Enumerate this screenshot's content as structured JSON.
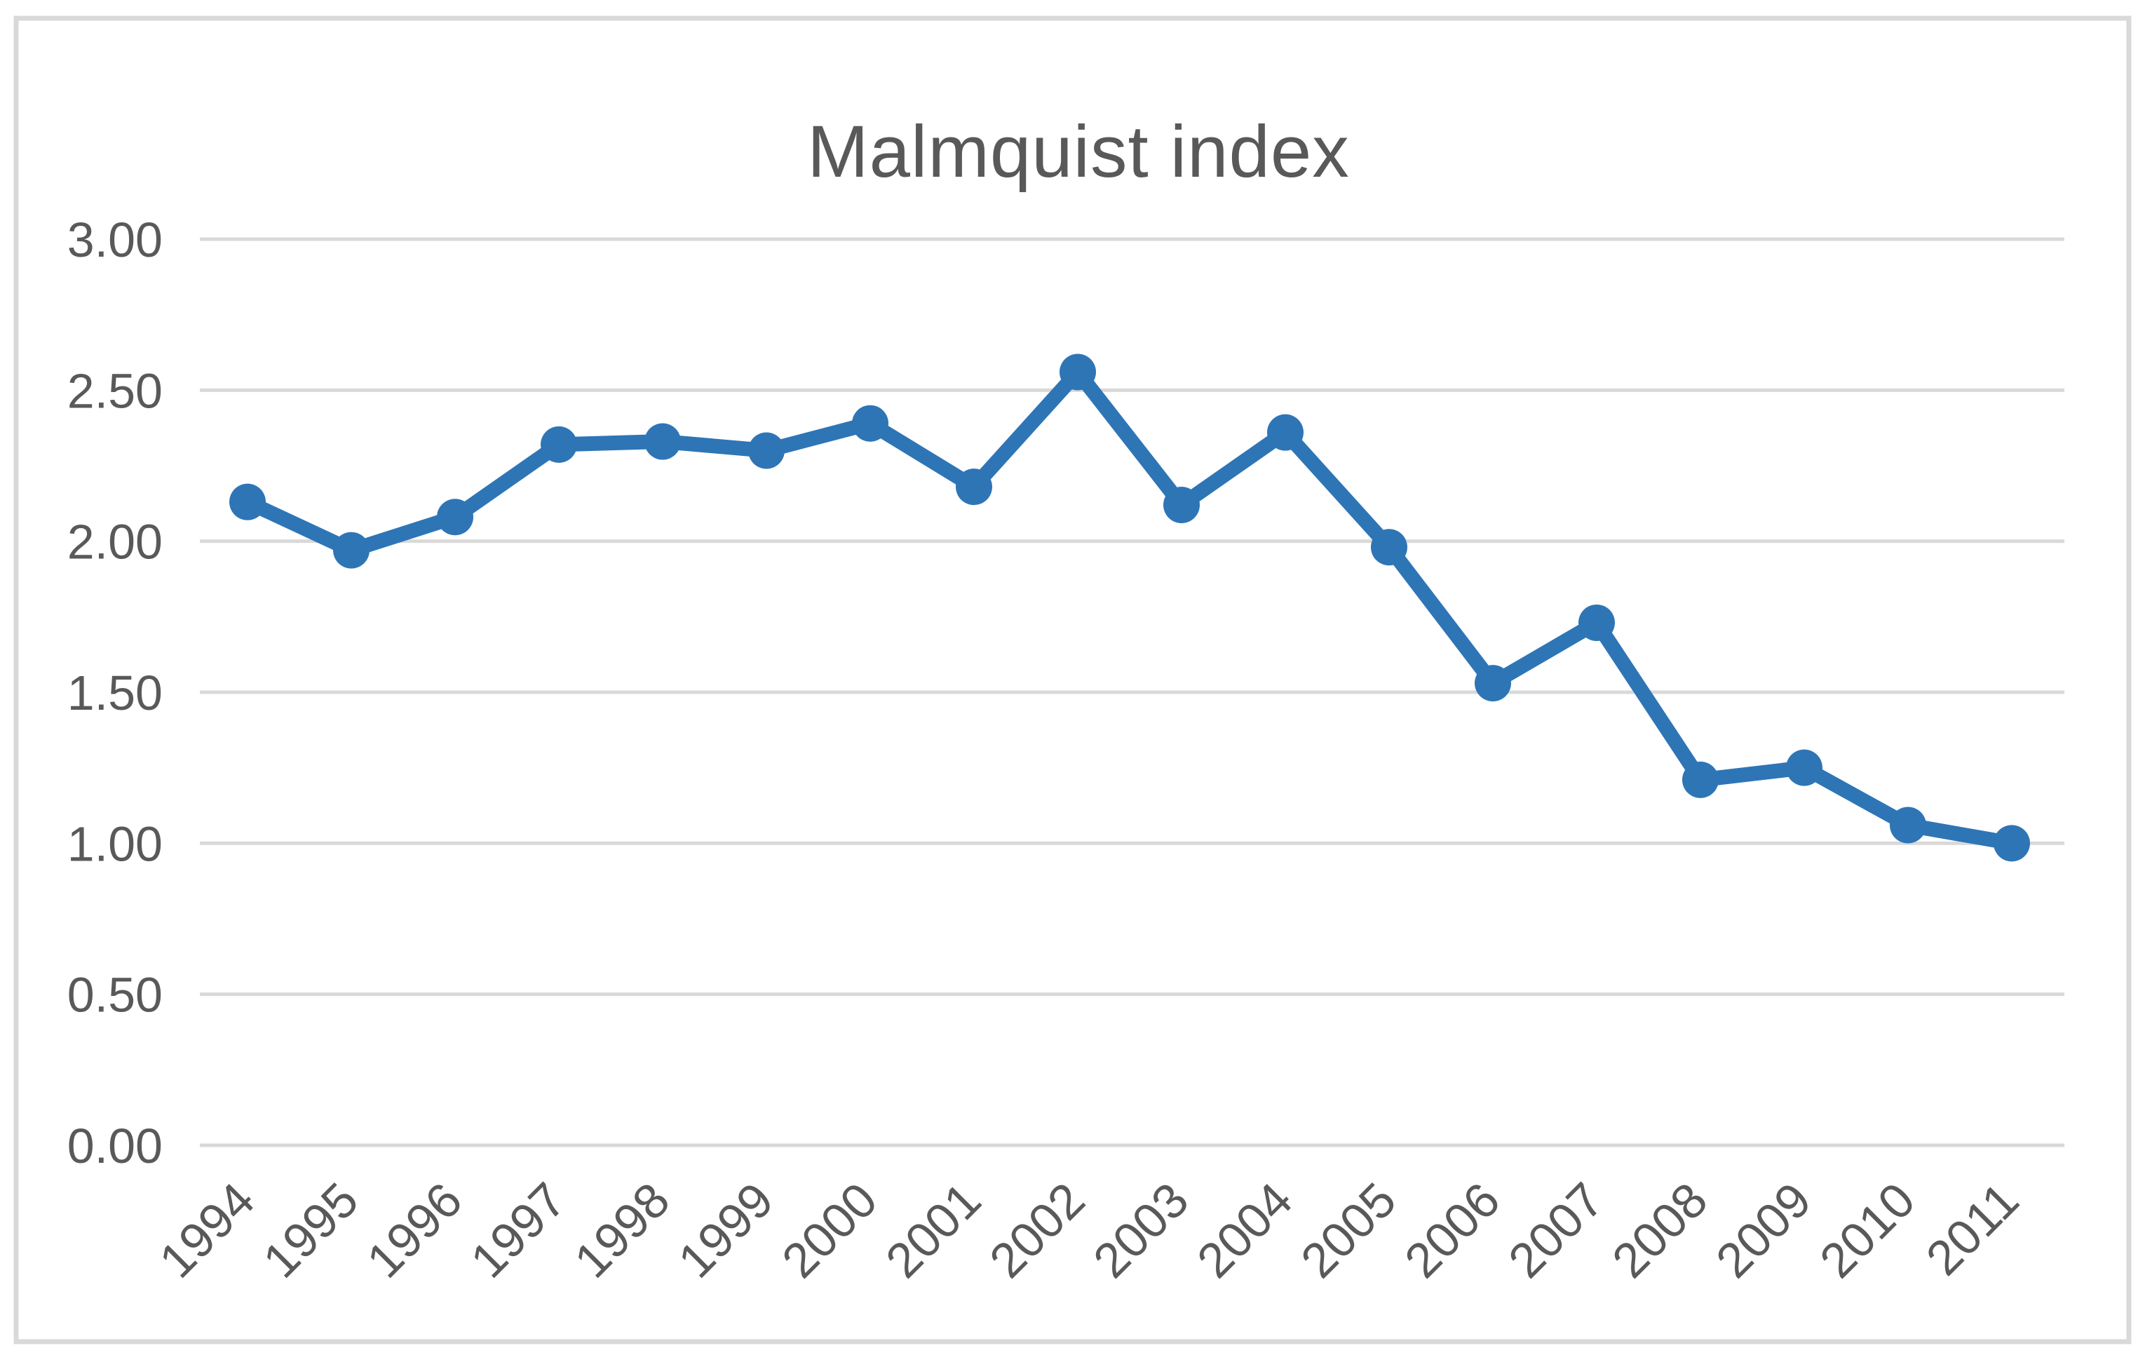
{
  "chart_data": {
    "type": "line",
    "title": "Malmquist index",
    "categories": [
      "1994",
      "1995",
      "1996",
      "1997",
      "1998",
      "1999",
      "2000",
      "2001",
      "2002",
      "2003",
      "2004",
      "2005",
      "2006",
      "2007",
      "2008",
      "2009",
      "2010",
      "2011"
    ],
    "series": [
      {
        "name": "Malmquist index",
        "values": [
          2.13,
          1.97,
          2.08,
          2.32,
          2.33,
          2.3,
          2.39,
          2.18,
          2.56,
          2.12,
          2.36,
          1.98,
          1.53,
          1.73,
          1.21,
          1.25,
          1.06,
          1.0
        ]
      }
    ],
    "xlabel": "",
    "ylabel": "",
    "ylim": [
      0.0,
      3.0
    ],
    "ytick_step": 0.5,
    "ytick_labels": [
      "0.00",
      "0.50",
      "1.00",
      "1.50",
      "2.00",
      "2.50",
      "3.00"
    ],
    "x_tick_rotation_deg": 45,
    "grid": "horizontal-only",
    "legend_position": "none",
    "marker_style": "circle",
    "colors": {
      "line": "#2E75B6",
      "marker": "#2E75B6",
      "gridline": "#D9D9D9",
      "frame_border": "#D9D9D9",
      "axis_text": "#595959",
      "title_text": "#595959",
      "background": "#FFFFFF"
    }
  }
}
